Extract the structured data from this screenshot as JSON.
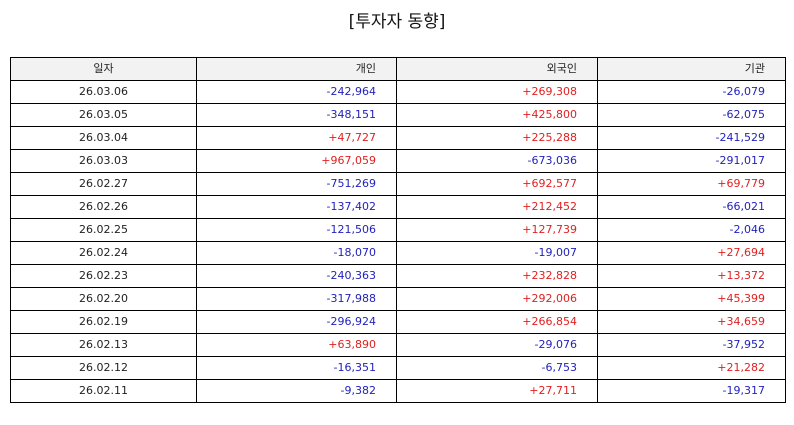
{
  "title": "[투자자 동향]",
  "colors": {
    "positive": "#e02020",
    "negative": "#2222bb",
    "header_bg": "#f2f2f2"
  },
  "table": {
    "headers": [
      "일자",
      "개인",
      "외국인",
      "기관"
    ],
    "rows": [
      [
        "26.03.06",
        "-242,964",
        "+269,308",
        "-26,079"
      ],
      [
        "26.03.05",
        "-348,151",
        "+425,800",
        "-62,075"
      ],
      [
        "26.03.04",
        "+47,727",
        "+225,288",
        "-241,529"
      ],
      [
        "26.03.03",
        "+967,059",
        "-673,036",
        "-291,017"
      ],
      [
        "26.02.27",
        "-751,269",
        "+692,577",
        "+69,779"
      ],
      [
        "26.02.26",
        "-137,402",
        "+212,452",
        "-66,021"
      ],
      [
        "26.02.25",
        "-121,506",
        "+127,739",
        "-2,046"
      ],
      [
        "26.02.24",
        "-18,070",
        "-19,007",
        "+27,694"
      ],
      [
        "26.02.23",
        "-240,363",
        "+232,828",
        "+13,372"
      ],
      [
        "26.02.20",
        "-317,988",
        "+292,006",
        "+45,399"
      ],
      [
        "26.02.19",
        "-296,924",
        "+266,854",
        "+34,659"
      ],
      [
        "26.02.13",
        "+63,890",
        "-29,076",
        "-37,952"
      ],
      [
        "26.02.12",
        "-16,351",
        "-6,753",
        "+21,282"
      ],
      [
        "26.02.11",
        "-9,382",
        "+27,711",
        "-19,317"
      ]
    ]
  }
}
